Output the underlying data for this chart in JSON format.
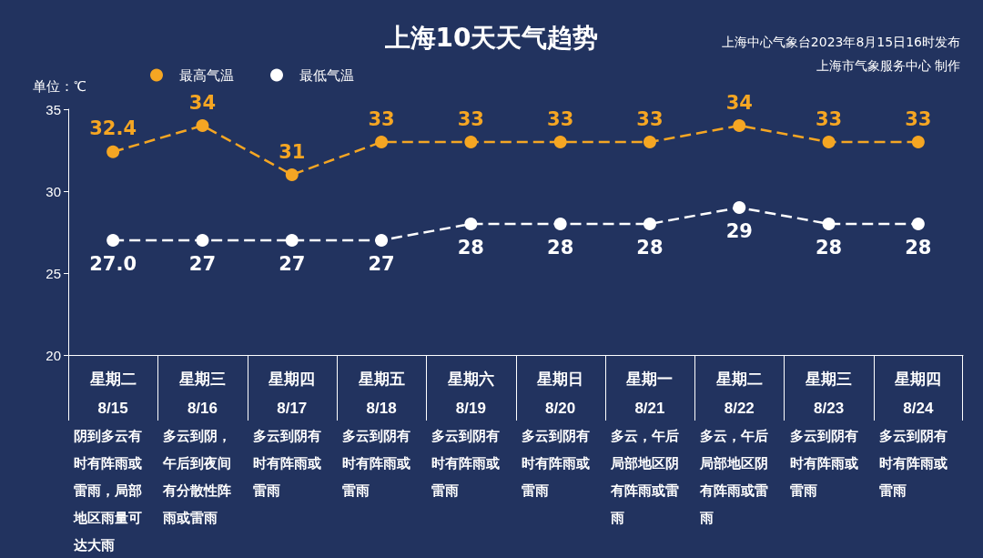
{
  "chart_data": {
    "type": "line",
    "title": "上海10天天气趋势",
    "subtitle": "上海中心气象台2023年8月15日16时发布",
    "ylabel": "单位：℃",
    "categories": [
      "星期二\n8/15",
      "星期三\n8/16",
      "星期四\n8/17",
      "星期五\n8/18",
      "星期六\n8/19",
      "星期日\n8/20",
      "星期一\n8/21",
      "星期二\n8/22",
      "星期三\n8/23",
      "星期四\n8/24"
    ],
    "series": [
      {
        "name": "最高气温",
        "color": "#f5a623",
        "values": [
          32.4,
          34,
          31,
          33,
          33,
          33,
          33,
          34,
          33,
          33
        ],
        "value_labels": [
          "32.4",
          "34",
          "31",
          "33",
          "33",
          "33",
          "33",
          "34",
          "33",
          "33"
        ]
      },
      {
        "name": "最低气温",
        "color": "#ffffff",
        "values": [
          27.0,
          27,
          27,
          27,
          28,
          28,
          28,
          29,
          28,
          28
        ],
        "value_labels": [
          "27.0",
          "27",
          "27",
          "27",
          "28",
          "28",
          "28",
          "29",
          "28",
          "28"
        ]
      }
    ],
    "ylim": [
      20,
      35
    ],
    "yticks": [
      20,
      25,
      30,
      35
    ],
    "grid": false,
    "legend": "top left",
    "marker": "circle",
    "line_style": "dashed",
    "annotations": [
      "阴到多云有时有阵雨或雷雨，局部地区雨量可达大雨",
      "多云到阴，午后到夜间有分散性阵雨或雷雨",
      "多云到阴有时有阵雨或雷雨",
      "多云到阴有时有阵雨或雷雨",
      "多云到阴有时有阵雨或雷雨",
      "多云到阴有时有阵雨或雷雨",
      "多云，午后局部地区阴有阵雨或雷雨",
      "多云，午后局部地区阴有阵雨或雷雨",
      "多云到阴有时有阵雨或雷雨",
      "多云到阴有时有阵雨或雷雨",
      "上海市气象服务中心 制作"
    ]
  }
}
